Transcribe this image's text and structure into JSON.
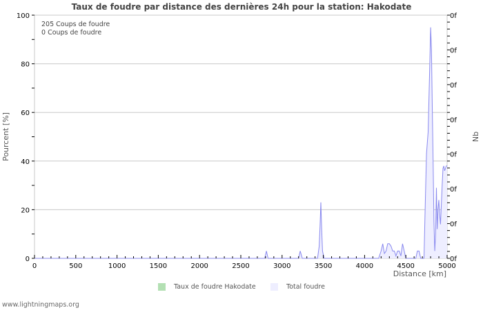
{
  "chart_data": {
    "type": "area",
    "title": "Taux de foudre par distance des dernières 24h pour la station: Hakodate",
    "xlabel": "Distance   [km]",
    "ylabel": "Pourcent   [%]",
    "y2label": "Nb",
    "xlim": [
      0,
      5000
    ],
    "ylim": [
      0,
      100
    ],
    "x_ticks": [
      0,
      500,
      1000,
      1500,
      2000,
      2500,
      3000,
      3500,
      4000,
      4500,
      5000
    ],
    "y_ticks": [
      0,
      20,
      40,
      60,
      80,
      100
    ],
    "y2_tick_labels": [
      "0f",
      "0f",
      "0f",
      "0f",
      "0f",
      "0f",
      "0f",
      "0f"
    ],
    "grid": true,
    "legend_position": "bottom",
    "info_lines": [
      "205  Coups de foudre",
      "0  Coups de foudre"
    ],
    "series": [
      {
        "name": "Taux de foudre Hakodate",
        "color": "#b3e0b3",
        "x": [],
        "values": []
      },
      {
        "name": "Total foudre",
        "color": "#eeeeff",
        "line_color": "#8888ee",
        "x": [
          0,
          2790,
          2810,
          2830,
          3200,
          3220,
          3245,
          3430,
          3450,
          3460,
          3470,
          3480,
          3490,
          3510,
          4170,
          4200,
          4220,
          4240,
          4260,
          4280,
          4300,
          4320,
          4340,
          4360,
          4380,
          4400,
          4420,
          4440,
          4460,
          4480,
          4500,
          4620,
          4640,
          4660,
          4680,
          4720,
          4730,
          4750,
          4770,
          4790,
          4800,
          4810,
          4820,
          4830,
          4840,
          4850,
          4860,
          4870,
          4880,
          4890,
          4900,
          4910,
          4920,
          4930,
          4940,
          4950,
          4960,
          4970,
          4980,
          4990,
          5000
        ],
        "values": [
          0,
          0,
          3,
          0,
          0,
          3,
          0,
          0,
          5,
          13,
          23,
          12,
          3,
          0,
          0,
          3,
          6,
          2,
          3,
          6,
          6,
          5,
          3,
          3,
          1,
          3,
          3,
          1,
          6,
          3,
          0,
          0,
          3,
          3,
          0,
          0,
          15,
          43,
          52,
          80,
          95,
          86,
          62,
          40,
          15,
          3,
          10,
          29,
          12,
          20,
          24,
          18,
          14,
          22,
          30,
          37,
          38,
          36,
          37,
          38,
          38
        ]
      }
    ]
  },
  "footer": {
    "source": "www.lightningmaps.org"
  }
}
